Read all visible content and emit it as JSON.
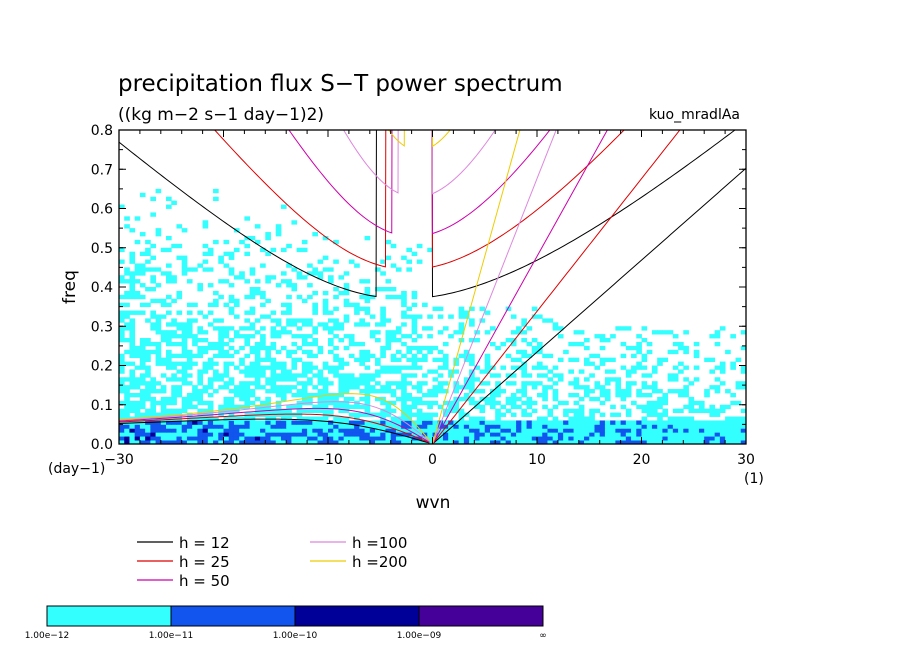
{
  "chart_data": {
    "type": "heatmap",
    "title": "precipitation flux S−T power spectrum",
    "subtitle": "((kg m−2 s−1 day−1)2)",
    "run_label": "kuo_mradlAa",
    "xlabel": "wvn",
    "ylabel": "freq",
    "x_unit": "(1)",
    "y_unit": "(day−1)",
    "xlim": [
      -30,
      30
    ],
    "ylim": [
      0,
      0.8
    ],
    "x_ticks": [
      -30,
      -20,
      -10,
      0,
      10,
      20,
      30
    ],
    "x_tick_labels": [
      "−30",
      "−20",
      "−10",
      "0",
      "10",
      "20",
      "30"
    ],
    "y_ticks": [
      0,
      0.1,
      0.2,
      0.3,
      0.4,
      0.5,
      0.6,
      0.7,
      0.8
    ],
    "y_tick_labels": [
      "0.0",
      "0.1",
      "0.2",
      "0.3",
      "0.4",
      "0.5",
      "0.6",
      "0.7",
      "0.8"
    ],
    "shading": {
      "levels": [
        "1.00e−12",
        "1.00e−11",
        "1.00e−10",
        "1.00e−09",
        "∞"
      ],
      "colors": [
        "#33ffff",
        "#1155ee",
        "#000099",
        "#440099"
      ]
    },
    "dispersion_curves": [
      {
        "name": "h = 12",
        "h": 12,
        "color": "#000000"
      },
      {
        "name": "h = 25",
        "h": 25,
        "color": "#dd0000"
      },
      {
        "name": "h = 50",
        "h": 50,
        "color": "#cc00aa"
      },
      {
        "name": "h =100",
        "h": 100,
        "color": "#dd88dd"
      },
      {
        "name": "h =200",
        "h": 200,
        "color": "#eecc00"
      }
    ]
  }
}
